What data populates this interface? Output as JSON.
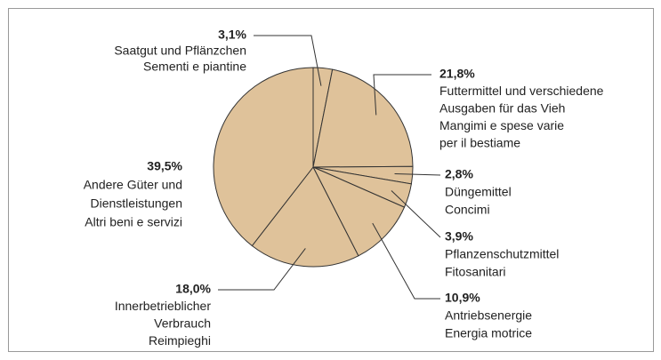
{
  "chart_data": {
    "type": "pie",
    "categories": [
      [
        "Saatgut und Pflänzchen",
        "Sementi e piantine"
      ],
      [
        "Futtermittel und verschiedene",
        "Ausgaben für das Vieh",
        "Mangimi e spese varie",
        "per il bestiame"
      ],
      [
        "Düngemittel",
        "Concimi"
      ],
      [
        "Pflanzenschutzmittel",
        "Fitosanitari"
      ],
      [
        "Antriebsenergie",
        "Energia motrice"
      ],
      [
        "Innerbetrieblicher",
        "Verbrauch",
        "Reimpieghi"
      ],
      [
        "Andere Güter und",
        "Dienstleistungen",
        "Altri beni e servizi"
      ]
    ],
    "values": [
      3.1,
      21.8,
      2.8,
      3.9,
      10.9,
      18.0,
      39.5
    ],
    "value_labels": [
      "3,1%",
      "21,8%",
      "2,8%",
      "3,9%",
      "10,9%",
      "18,0%",
      "39,5%"
    ],
    "color": "#dfc29a"
  }
}
